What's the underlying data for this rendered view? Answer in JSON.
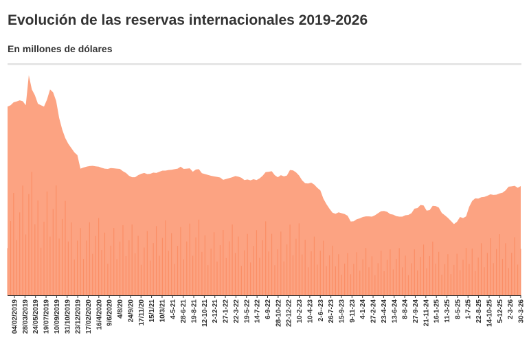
{
  "header": {
    "title": "Evolución de las reservas internacionales 2019-2026",
    "subtitle": "En millones de dólares"
  },
  "colors": {
    "area_fill": "#fca382",
    "bar_dark": "#f97d4f",
    "axis_line": "#333333",
    "rule": "#e6e6e6"
  },
  "chart_data": {
    "type": "area",
    "title": "Evolución de las reservas internacionales 2019-2026",
    "subtitle": "En millones de dólares",
    "xlabel": "",
    "ylabel": "",
    "y_axis_visible": false,
    "grid": false,
    "legend": "none",
    "x_tick_labels": [
      "04/02/2019",
      "28/03/2019",
      "24/05/2019",
      "19/07/2019",
      "10/09/2019",
      "31/10/2019",
      "23/12/2019",
      "17/02/2020",
      "16/4/2020",
      "9/6/2020",
      "4/8/20",
      "24/9/20",
      "17/11/20",
      "15/1/21",
      "10/3/21",
      "4-5-21",
      "28-6-21",
      "19-8-21",
      "12-10-21",
      "2-12-21",
      "27-1-22",
      "22-3-22",
      "19-5-22",
      "14-7-22",
      "6-9-22",
      "28-10-22",
      "22-12-22",
      "10-2-23",
      "10-4-23",
      "2-6--23",
      "26-7-23",
      "15-9-23",
      "9-11-23",
      "4-1-24",
      "27-2-24",
      "23-4-24",
      "13-6-24",
      "8-8-24",
      "27-9-24",
      "21-11-24",
      "16-1-25",
      "11-3-25",
      "8-5-25",
      "1-7-25",
      "22-8-25",
      "14-10-25",
      "5-12-25",
      "2-3-26",
      "30-3-26"
    ],
    "series": [
      {
        "values": [
          66000,
          66500,
          67500,
          67800,
          68200,
          67900,
          66500,
          77000,
          72000,
          70000,
          67000,
          66500,
          66000,
          68500,
          72000,
          71000,
          68000,
          62000,
          58000,
          55000,
          53000,
          51500,
          50000,
          49000,
          44300,
          44700,
          45000,
          45200,
          45300,
          45100,
          45000,
          44600,
          44300,
          44200,
          44500,
          44400,
          44300,
          44200,
          43400,
          42800,
          41800,
          41300,
          41300,
          42000,
          42500,
          42800,
          42400,
          42500,
          42900,
          42800,
          43200,
          43600,
          43600,
          43800,
          43900,
          44100,
          44300,
          45000,
          44200,
          44300,
          44400,
          43200,
          44000,
          44100,
          42700,
          42400,
          42100,
          41800,
          41600,
          41400,
          41200,
          40400,
          40700,
          41000,
          41300,
          41700,
          41500,
          41100,
          40300,
          40500,
          40200,
          40600,
          40300,
          40900,
          41800,
          43100,
          43200,
          43400,
          42000,
          41300,
          42000,
          41600,
          41900,
          43800,
          43700,
          43000,
          41900,
          40200,
          39200,
          39100,
          39400,
          38700,
          37600,
          36700,
          33800,
          31900,
          30300,
          28900,
          28500,
          29000,
          28700,
          28400,
          27800,
          25800,
          25900,
          26600,
          26900,
          27400,
          27600,
          27600,
          27500,
          28000,
          28700,
          29400,
          29500,
          29200,
          28400,
          28200,
          27700,
          27500,
          27500,
          28000,
          28100,
          28700,
          30300,
          30500,
          31600,
          31400,
          29600,
          29800,
          31300,
          31200,
          30700,
          28800,
          28000,
          27100,
          26000,
          24900,
          25700,
          27400,
          27000,
          27600,
          30900,
          33000,
          33900,
          33800,
          34300,
          34400,
          34800,
          35300,
          35100,
          35200,
          35600,
          35900,
          36700,
          38000,
          38100,
          38300,
          37600,
          38200
        ]
      }
    ],
    "value_note_min": 0,
    "ylim": [
      0,
      80000
    ]
  }
}
